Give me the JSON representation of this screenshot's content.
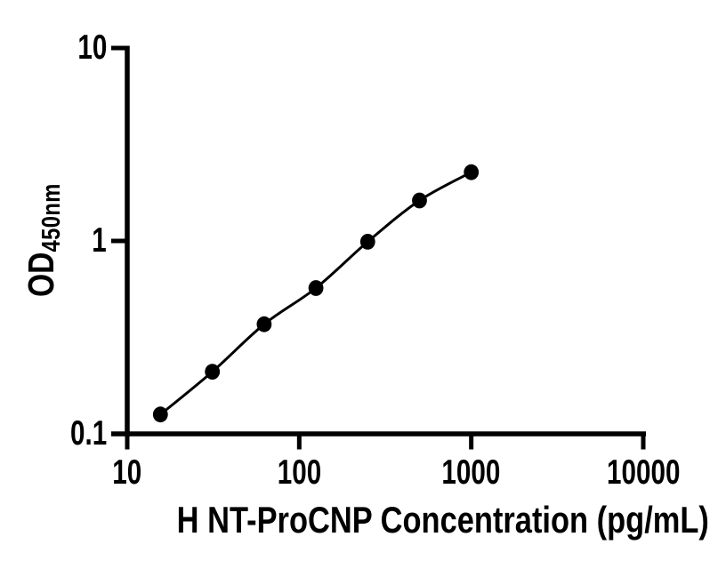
{
  "figure": {
    "background": "#ffffff"
  },
  "chart_data": {
    "type": "scatter",
    "subtype": "elisa-standard-curve",
    "title": "",
    "xlabel": "H NT-ProCNP Concentration (pg/mL)",
    "ylabel_main": "OD",
    "ylabel_sub": "450nm",
    "x_scale": "log10",
    "y_scale": "log10",
    "xlim": [
      10,
      10000
    ],
    "ylim": [
      0.1,
      10
    ],
    "x_ticks": [
      "10",
      "100",
      "1000",
      "10000"
    ],
    "y_ticks": [
      "0.1",
      "1",
      "10"
    ],
    "grid": false,
    "legend": "none",
    "series": [
      {
        "marker": "filled-circle",
        "line": "smooth-fit",
        "x": [
          15.6,
          31.25,
          62.5,
          125,
          250,
          500,
          1000
        ],
        "y": [
          0.126,
          0.21,
          0.37,
          0.57,
          0.99,
          1.62,
          2.27
        ]
      }
    ],
    "colors": {
      "marker": "#000000",
      "line": "#000000",
      "axis": "#000000",
      "text": "#000000",
      "background": "#ffffff"
    }
  }
}
